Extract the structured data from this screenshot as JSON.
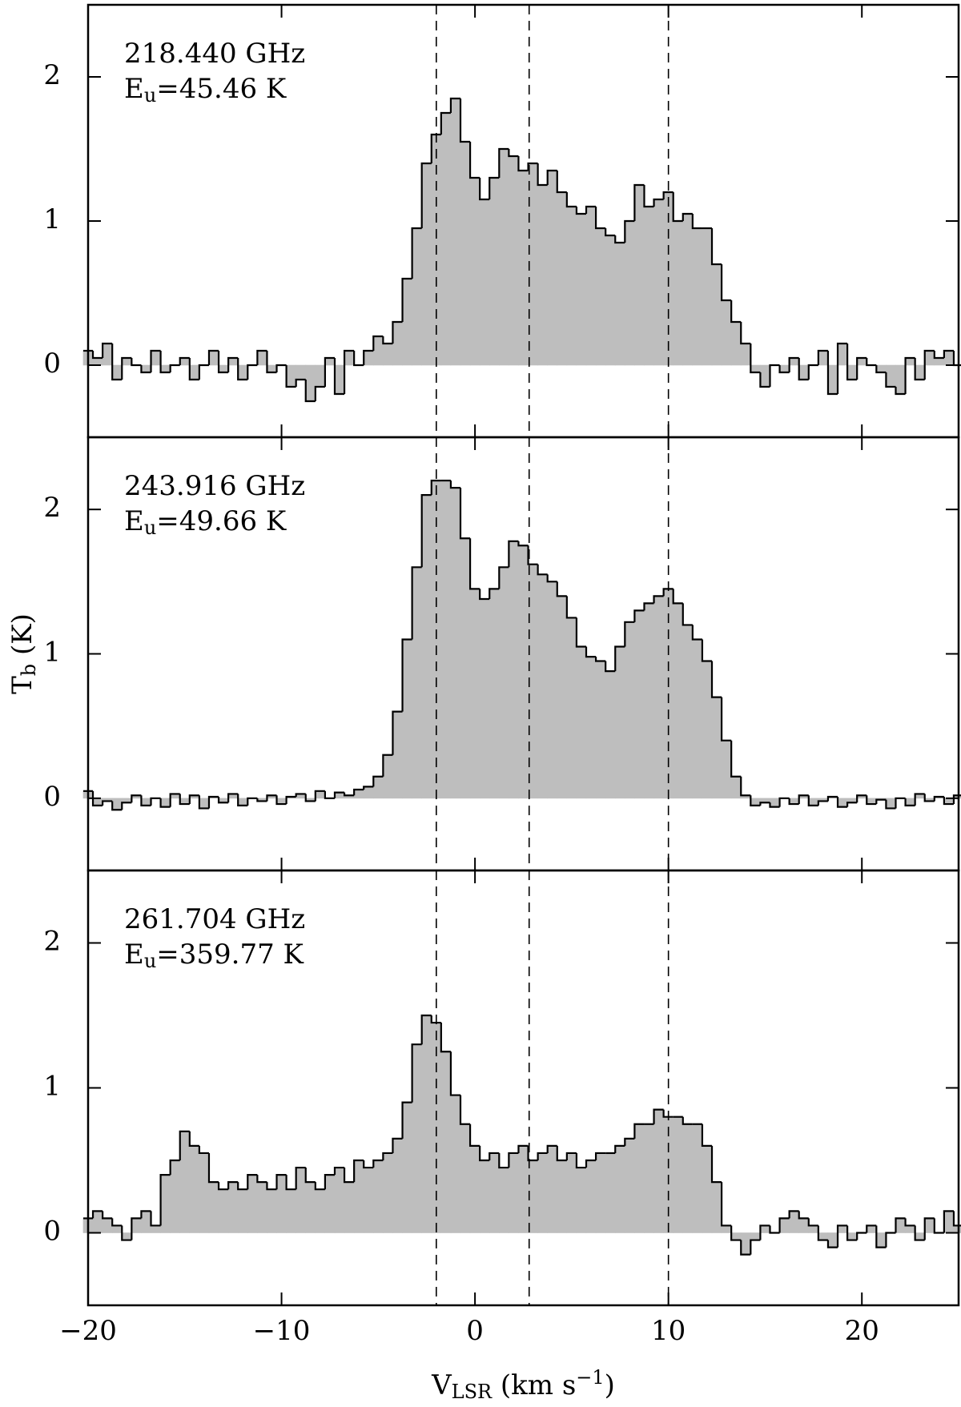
{
  "chart_data": [
    {
      "type": "step",
      "annotations": {
        "frequency": "218.440 GHz",
        "energy": {
          "symbol": "E",
          "subscript": "u",
          "text": "=45.46 K"
        }
      },
      "x": [
        -20,
        -19.5,
        -19,
        -18.5,
        -18,
        -17.5,
        -17,
        -16.5,
        -16,
        -15.5,
        -15,
        -14.5,
        -14,
        -13.5,
        -13,
        -12.5,
        -12,
        -11.5,
        -11,
        -10.5,
        -10,
        -9.5,
        -9,
        -8.5,
        -8,
        -7.5,
        -7,
        -6.5,
        -6,
        -5.5,
        -5,
        -4.5,
        -4,
        -3.5,
        -3,
        -2.5,
        -2,
        -1.5,
        -1,
        -0.5,
        0,
        0.5,
        1,
        1.5,
        2,
        2.5,
        3,
        3.5,
        4,
        4.5,
        5,
        5.5,
        6,
        6.5,
        7,
        7.5,
        8,
        8.5,
        9,
        9.5,
        10,
        10.5,
        11,
        11.5,
        12,
        12.5,
        13,
        13.5,
        14,
        14.5,
        15,
        15.5,
        16,
        16.5,
        17,
        17.5,
        18,
        18.5,
        19,
        19.5,
        20,
        20.5,
        21,
        21.5,
        22,
        22.5,
        23,
        23.5,
        24,
        24.5,
        25
      ],
      "values": [
        0.1,
        0.05,
        0.15,
        -0.1,
        0.05,
        0,
        -0.05,
        0.1,
        -0.05,
        0,
        0.05,
        -0.1,
        0,
        0.1,
        -0.05,
        0.05,
        -0.1,
        0,
        0.1,
        -0.05,
        0,
        -0.15,
        -0.1,
        -0.25,
        -0.15,
        0.05,
        -0.2,
        0.1,
        0,
        0.1,
        0.2,
        0.15,
        0.3,
        0.6,
        0.95,
        1.4,
        1.6,
        1.75,
        1.85,
        1.55,
        1.3,
        1.15,
        1.3,
        1.5,
        1.45,
        1.35,
        1.4,
        1.25,
        1.35,
        1.2,
        1.1,
        1.05,
        1.1,
        0.95,
        0.9,
        0.85,
        1,
        1.25,
        1.1,
        1.15,
        1.2,
        1,
        1.05,
        0.95,
        0.95,
        0.7,
        0.45,
        0.3,
        0.15,
        -0.05,
        -0.15,
        0,
        -0.05,
        0.05,
        -0.1,
        0,
        0.1,
        -0.2,
        0.15,
        -0.1,
        0.05,
        0,
        -0.05,
        -0.15,
        -0.2,
        0.05,
        -0.1,
        0.1,
        0.05,
        0.1,
        0
      ],
      "xlim": [
        -20,
        25
      ],
      "xticks": [
        -20,
        -10,
        0,
        10,
        20
      ],
      "ylim": [
        -0.5,
        2.5
      ],
      "yticks": [
        0,
        1,
        2
      ],
      "vlines": [
        -2,
        2.8,
        10
      ],
      "fill_color": "#bebebe",
      "line_color": "#000000"
    },
    {
      "type": "step",
      "annotations": {
        "frequency": "243.916 GHz",
        "energy": {
          "symbol": "E",
          "subscript": "u",
          "text": "=49.66 K"
        }
      },
      "ylabel": {
        "symbol": "T",
        "subscript": "b",
        "text": " (K)"
      },
      "x": [
        -20,
        -19.5,
        -19,
        -18.5,
        -18,
        -17.5,
        -17,
        -16.5,
        -16,
        -15.5,
        -15,
        -14.5,
        -14,
        -13.5,
        -13,
        -12.5,
        -12,
        -11.5,
        -11,
        -10.5,
        -10,
        -9.5,
        -9,
        -8.5,
        -8,
        -7.5,
        -7,
        -6.5,
        -6,
        -5.5,
        -5,
        -4.5,
        -4,
        -3.5,
        -3,
        -2.5,
        -2,
        -1.5,
        -1,
        -0.5,
        0,
        0.5,
        1,
        1.5,
        2,
        2.5,
        3,
        3.5,
        4,
        4.5,
        5,
        5.5,
        6,
        6.5,
        7,
        7.5,
        8,
        8.5,
        9,
        9.5,
        10,
        10.5,
        11,
        11.5,
        12,
        12.5,
        13,
        13.5,
        14,
        14.5,
        15,
        15.5,
        16,
        16.5,
        17,
        17.5,
        18,
        18.5,
        19,
        19.5,
        20,
        20.5,
        21,
        21.5,
        22,
        22.5,
        23,
        23.5,
        24,
        24.5,
        25
      ],
      "values": [
        0.05,
        -0.05,
        -0.02,
        -0.08,
        -0.03,
        0.02,
        -0.05,
        0,
        -0.06,
        0.03,
        -0.04,
        0.02,
        -0.07,
        0.01,
        -0.03,
        0.03,
        -0.05,
        0,
        -0.02,
        0.02,
        -0.04,
        0.01,
        0.03,
        -0.02,
        0.05,
        0,
        0.04,
        0.02,
        0.06,
        0.08,
        0.15,
        0.3,
        0.6,
        1.1,
        1.6,
        2.1,
        2.2,
        2.2,
        2.15,
        1.8,
        1.45,
        1.38,
        1.45,
        1.6,
        1.78,
        1.75,
        1.62,
        1.55,
        1.5,
        1.4,
        1.25,
        1.05,
        0.98,
        0.95,
        0.88,
        1.05,
        1.22,
        1.3,
        1.35,
        1.4,
        1.45,
        1.35,
        1.2,
        1.1,
        0.95,
        0.7,
        0.4,
        0.15,
        0.02,
        -0.05,
        -0.03,
        -0.06,
        0,
        -0.04,
        0.02,
        -0.05,
        -0.02,
        0.01,
        -0.06,
        -0.03,
        0.02,
        -0.04,
        -0.01,
        -0.07,
        0,
        -0.05,
        0.03,
        -0.02,
        0.01,
        -0.04,
        0.02
      ],
      "xlim": [
        -20,
        25
      ],
      "xticks": [
        -20,
        -10,
        0,
        10,
        20
      ],
      "ylim": [
        -0.5,
        2.5
      ],
      "yticks": [
        0,
        1,
        2
      ],
      "vlines": [
        -2,
        2.8,
        10
      ],
      "fill_color": "#bebebe",
      "line_color": "#000000"
    },
    {
      "type": "step",
      "annotations": {
        "frequency": "261.704 GHz",
        "energy": {
          "symbol": "E",
          "subscript": "u",
          "text": "=359.77 K"
        }
      },
      "xlabel": {
        "symbol": "V",
        "subscript": "LSR",
        "text": " (km s",
        "superscript": "−1",
        "end": ")"
      },
      "x": [
        -20,
        -19.5,
        -19,
        -18.5,
        -18,
        -17.5,
        -17,
        -16.5,
        -16,
        -15.5,
        -15,
        -14.5,
        -14,
        -13.5,
        -13,
        -12.5,
        -12,
        -11.5,
        -11,
        -10.5,
        -10,
        -9.5,
        -9,
        -8.5,
        -8,
        -7.5,
        -7,
        -6.5,
        -6,
        -5.5,
        -5,
        -4.5,
        -4,
        -3.5,
        -3,
        -2.5,
        -2,
        -1.5,
        -1,
        -0.5,
        0,
        0.5,
        1,
        1.5,
        2,
        2.5,
        3,
        3.5,
        4,
        4.5,
        5,
        5.5,
        6,
        6.5,
        7,
        7.5,
        8,
        8.5,
        9,
        9.5,
        10,
        10.5,
        11,
        11.5,
        12,
        12.5,
        13,
        13.5,
        14,
        14.5,
        15,
        15.5,
        16,
        16.5,
        17,
        17.5,
        18,
        18.5,
        19,
        19.5,
        20,
        20.5,
        21,
        21.5,
        22,
        22.5,
        23,
        23.5,
        24,
        24.5,
        25
      ],
      "values": [
        0.1,
        0.15,
        0.1,
        0.05,
        -0.05,
        0.1,
        0.15,
        0.05,
        0.4,
        0.5,
        0.7,
        0.6,
        0.55,
        0.35,
        0.3,
        0.35,
        0.3,
        0.4,
        0.35,
        0.3,
        0.4,
        0.3,
        0.45,
        0.35,
        0.3,
        0.4,
        0.45,
        0.35,
        0.5,
        0.45,
        0.5,
        0.55,
        0.65,
        0.9,
        1.3,
        1.5,
        1.45,
        1.25,
        0.95,
        0.75,
        0.6,
        0.5,
        0.55,
        0.45,
        0.55,
        0.6,
        0.5,
        0.55,
        0.6,
        0.5,
        0.55,
        0.45,
        0.5,
        0.55,
        0.55,
        0.6,
        0.65,
        0.75,
        0.75,
        0.85,
        0.8,
        0.8,
        0.75,
        0.75,
        0.6,
        0.35,
        0.05,
        -0.05,
        -0.15,
        -0.05,
        0.05,
        0,
        0.1,
        0.15,
        0.1,
        0.05,
        -0.05,
        -0.1,
        0.05,
        -0.05,
        0,
        0.05,
        -0.1,
        0,
        0.1,
        0.05,
        -0.05,
        0.1,
        0,
        0.15,
        0.05
      ],
      "xlim": [
        -20,
        25
      ],
      "xticks": [
        {
          "value": -20,
          "label": "−20"
        },
        {
          "value": -10,
          "label": "−10"
        },
        0,
        10,
        20
      ],
      "ylim": [
        -0.5,
        2.5
      ],
      "yticks": [
        0,
        1,
        2
      ],
      "vlines": [
        -2,
        2.8,
        10
      ],
      "fill_color": "#bebebe",
      "line_color": "#000000"
    }
  ]
}
